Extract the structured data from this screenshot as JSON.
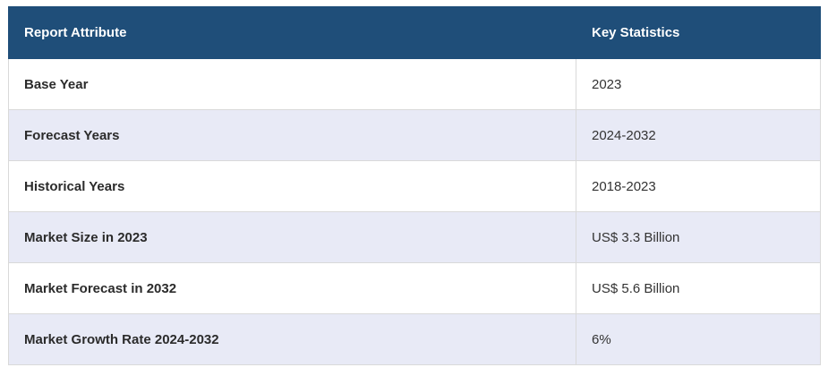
{
  "table": {
    "headers": {
      "attribute": "Report Attribute",
      "statistics": "Key Statistics"
    },
    "rows": [
      {
        "attribute": "Base Year",
        "value": "2023"
      },
      {
        "attribute": "Forecast Years",
        "value": "2024-2032"
      },
      {
        "attribute": "Historical Years",
        "value": "2018-2023"
      },
      {
        "attribute": "Market Size in 2023",
        "value": "US$ 3.3 Billion"
      },
      {
        "attribute": "Market Forecast in 2032",
        "value": "US$ 5.6 Billion"
      },
      {
        "attribute": "Market Growth Rate 2024-2032",
        "value": "6%"
      }
    ]
  },
  "colors": {
    "header_bg": "#1f4e79",
    "header_text": "#ffffff",
    "row_alt_bg": "#e8eaf6",
    "row_bg": "#ffffff",
    "border": "#d9d9d9"
  }
}
